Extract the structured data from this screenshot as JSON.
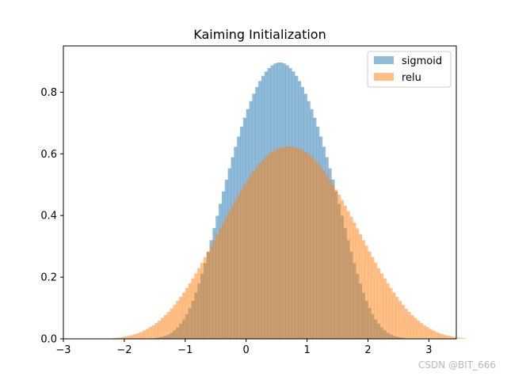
{
  "chart_data": {
    "type": "bar",
    "title": "Kaiming Initialization",
    "xlabel": "",
    "ylabel": "",
    "xlim": [
      -3,
      3.45
    ],
    "ylim": [
      0,
      0.95
    ],
    "xticks": [
      -3,
      -2,
      -1,
      0,
      1,
      2,
      3
    ],
    "xtick_labels": [
      "−3",
      "−2",
      "−1",
      "0",
      "1",
      "2",
      "3"
    ],
    "yticks": [
      0.0,
      0.2,
      0.4,
      0.6,
      0.8
    ],
    "ytick_labels": [
      "0.0",
      "0.2",
      "0.4",
      "0.6",
      "0.8"
    ],
    "legend_position": "top-right",
    "grid": false,
    "bin_width": 0.05,
    "series": [
      {
        "name": "sigmoid",
        "color": "#1f77b4",
        "alpha": 0.5,
        "bin_start": -1.5,
        "values": [
          0.003,
          0.005,
          0.007,
          0.01,
          0.014,
          0.02,
          0.028,
          0.037,
          0.049,
          0.063,
          0.08,
          0.1,
          0.123,
          0.15,
          0.179,
          0.211,
          0.245,
          0.282,
          0.32,
          0.359,
          0.399,
          0.438,
          0.478,
          0.516,
          0.553,
          0.589,
          0.623,
          0.656,
          0.688,
          0.717,
          0.745,
          0.771,
          0.795,
          0.817,
          0.836,
          0.853,
          0.867,
          0.878,
          0.887,
          0.893,
          0.896,
          0.896,
          0.893,
          0.887,
          0.878,
          0.867,
          0.853,
          0.836,
          0.817,
          0.795,
          0.771,
          0.745,
          0.717,
          0.688,
          0.656,
          0.623,
          0.589,
          0.553,
          0.516,
          0.478,
          0.438,
          0.399,
          0.359,
          0.32,
          0.282,
          0.245,
          0.211,
          0.179,
          0.15,
          0.123,
          0.1,
          0.08,
          0.063,
          0.049,
          0.037,
          0.028,
          0.02,
          0.014,
          0.01,
          0.007,
          0.005,
          0.003
        ]
      },
      {
        "name": "relu",
        "color": "#ff7f0e",
        "alpha": 0.5,
        "bin_start": -2.2,
        "values": [
          0.002,
          0.003,
          0.004,
          0.006,
          0.008,
          0.01,
          0.012,
          0.015,
          0.018,
          0.022,
          0.027,
          0.032,
          0.038,
          0.044,
          0.051,
          0.059,
          0.068,
          0.077,
          0.087,
          0.098,
          0.11,
          0.123,
          0.136,
          0.15,
          0.165,
          0.18,
          0.196,
          0.212,
          0.229,
          0.247,
          0.265,
          0.283,
          0.302,
          0.32,
          0.339,
          0.358,
          0.377,
          0.396,
          0.414,
          0.432,
          0.45,
          0.467,
          0.484,
          0.5,
          0.516,
          0.531,
          0.545,
          0.558,
          0.57,
          0.58,
          0.59,
          0.599,
          0.606,
          0.612,
          0.617,
          0.62,
          0.623,
          0.624,
          0.624,
          0.623,
          0.62,
          0.617,
          0.612,
          0.606,
          0.599,
          0.59,
          0.58,
          0.57,
          0.558,
          0.545,
          0.531,
          0.516,
          0.5,
          0.484,
          0.467,
          0.45,
          0.432,
          0.414,
          0.396,
          0.377,
          0.358,
          0.339,
          0.32,
          0.302,
          0.283,
          0.265,
          0.247,
          0.229,
          0.212,
          0.196,
          0.18,
          0.165,
          0.15,
          0.136,
          0.123,
          0.11,
          0.098,
          0.087,
          0.077,
          0.068,
          0.059,
          0.051,
          0.044,
          0.038,
          0.032,
          0.027,
          0.022,
          0.018,
          0.015,
          0.012,
          0.01,
          0.008,
          0.006,
          0.004,
          0.003,
          0.002
        ]
      }
    ]
  },
  "watermark": "CSDN @BIT_666"
}
